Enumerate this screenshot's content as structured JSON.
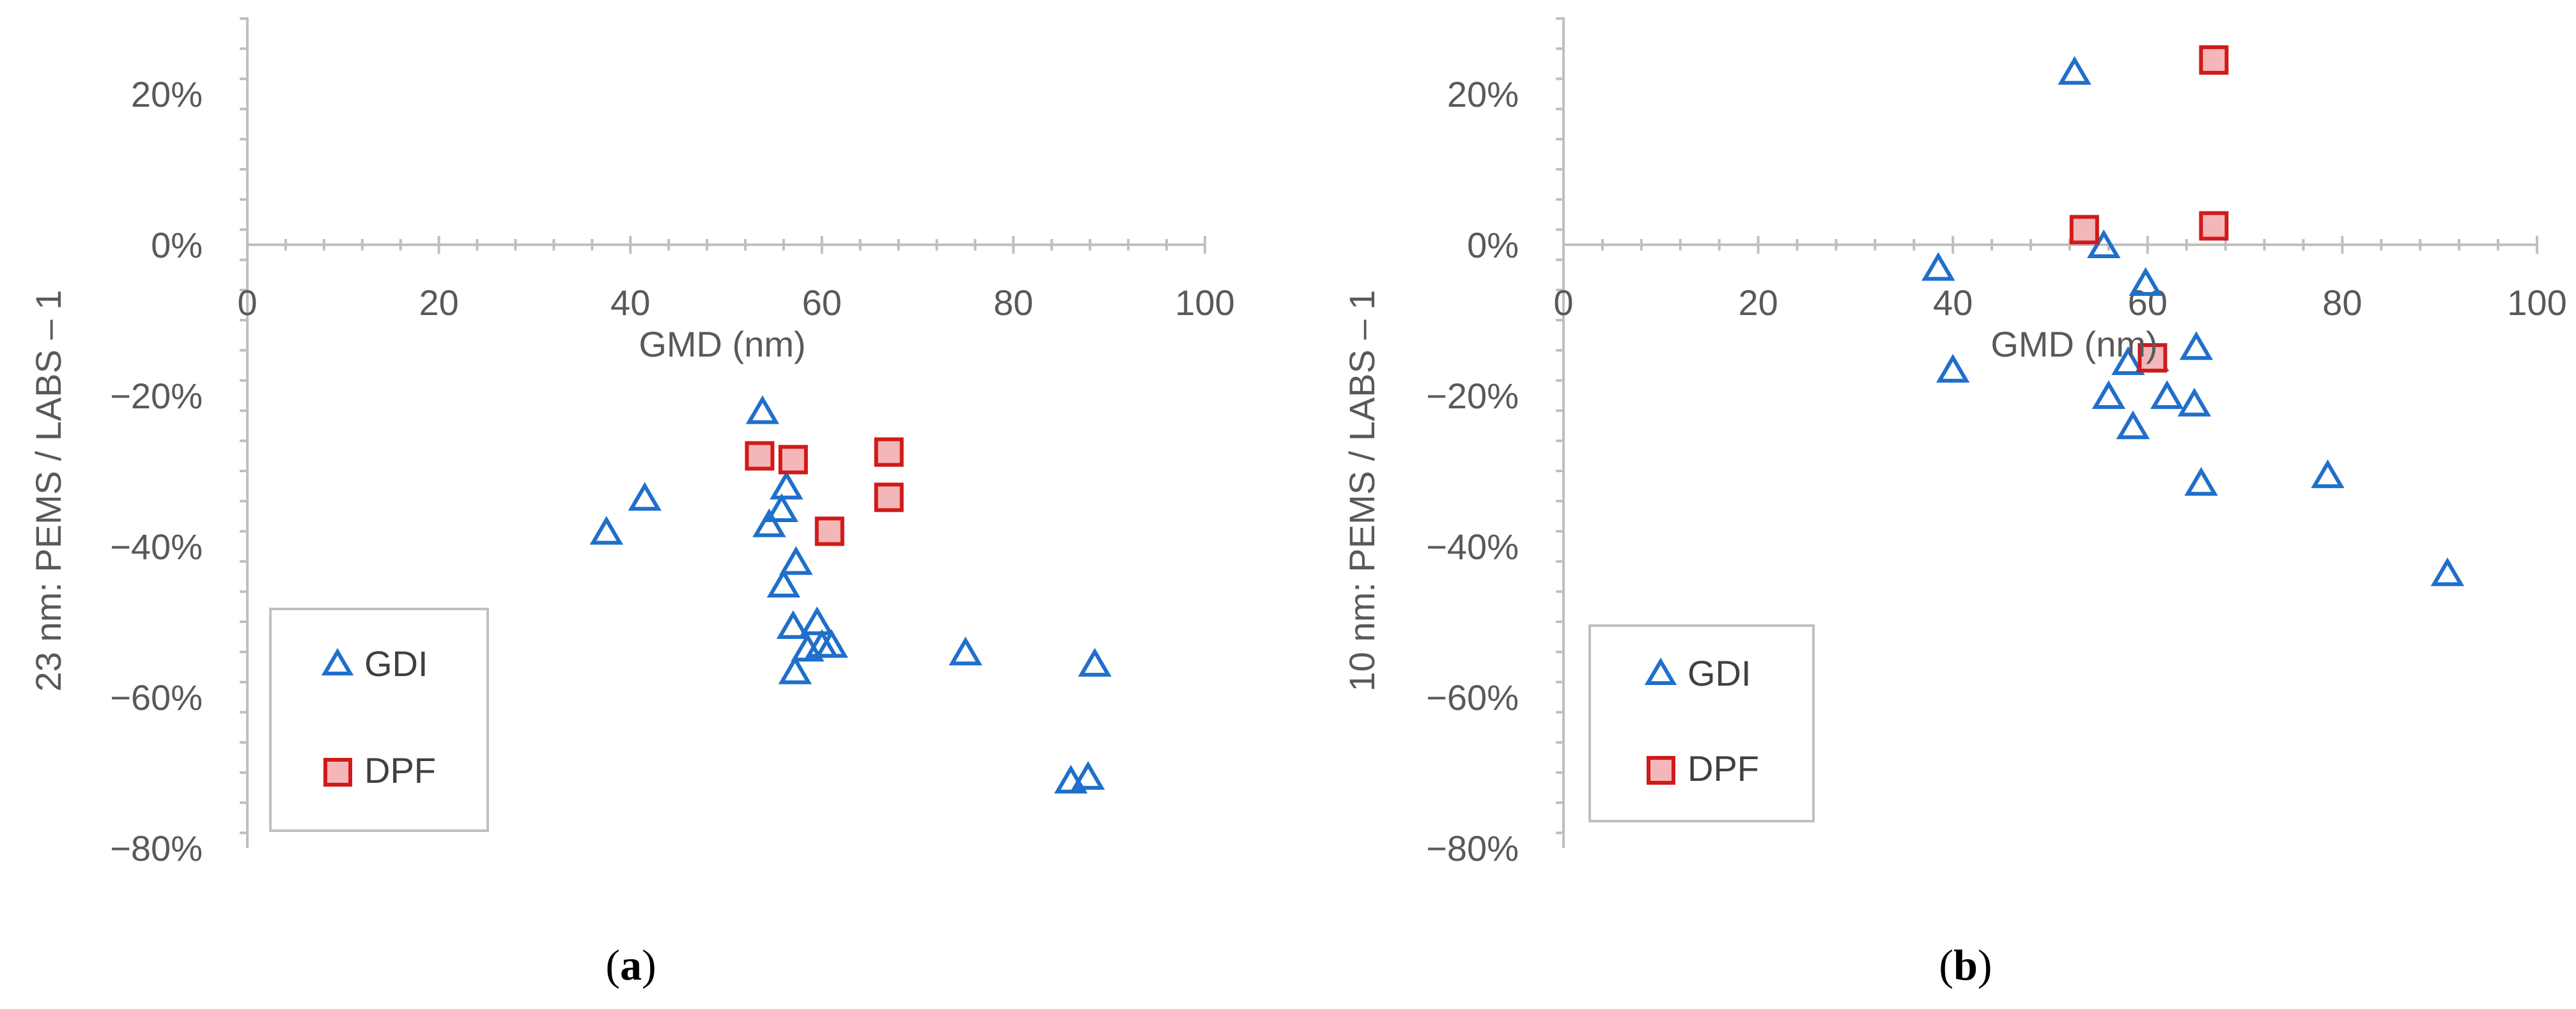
{
  "colors": {
    "gdi": "#1f6fcb",
    "dpf_stroke": "#d11a1a",
    "dpf_fill": "#f4b7b9",
    "axis": "#bfbfbf",
    "text": "#595959"
  },
  "chart_data": [
    {
      "type": "scatter",
      "panel_label": "a",
      "xlabel": "GMD (nm)",
      "ylabel": "23 nm:  PEMS / LABS – 1",
      "xlim": [
        0,
        100
      ],
      "ylim": [
        -80,
        30
      ],
      "x_ticks": [
        0,
        20,
        40,
        60,
        80,
        100
      ],
      "y_ticks": [
        20,
        0,
        -20,
        -40,
        -60,
        -80
      ],
      "y_tick_labels": [
        "20%",
        "0%",
        "−20%",
        "−40%",
        "−60%",
        "−80%"
      ],
      "legend": [
        {
          "label": "GDI",
          "marker": "triangle"
        },
        {
          "label": "DPF",
          "marker": "square"
        }
      ],
      "series": [
        {
          "name": "GDI",
          "points": [
            [
              37.5,
              -38
            ],
            [
              41.5,
              -33.5
            ],
            [
              53.8,
              -22
            ],
            [
              54.5,
              -37
            ],
            [
              55.8,
              -35
            ],
            [
              56.3,
              -32
            ],
            [
              56,
              -45
            ],
            [
              57.3,
              -42
            ],
            [
              57,
              -50.5
            ],
            [
              57.2,
              -56.5
            ],
            [
              58.5,
              -53.5
            ],
            [
              59.5,
              -50
            ],
            [
              60,
              -53
            ],
            [
              61,
              -53
            ],
            [
              75,
              -54
            ],
            [
              88.5,
              -55.5
            ],
            [
              86,
              -71
            ],
            [
              87.8,
              -70.5
            ]
          ]
        },
        {
          "name": "DPF",
          "points": [
            [
              53.5,
              -28
            ],
            [
              57,
              -28.5
            ],
            [
              60.8,
              -38
            ],
            [
              67,
              -27.5
            ],
            [
              67,
              -33.5
            ]
          ]
        }
      ]
    },
    {
      "type": "scatter",
      "panel_label": "b",
      "xlabel": "GMD (nm)",
      "ylabel": "10 nm:  PEMS / LABS – 1",
      "xlim": [
        0,
        100
      ],
      "ylim": [
        -80,
        30
      ],
      "x_ticks": [
        0,
        20,
        40,
        60,
        80,
        100
      ],
      "y_ticks": [
        20,
        0,
        -20,
        -40,
        -60,
        -80
      ],
      "y_tick_labels": [
        "20%",
        "0%",
        "−20%",
        "−40%",
        "−60%",
        "−80%"
      ],
      "legend": [
        {
          "label": "GDI",
          "marker": "triangle"
        },
        {
          "label": "DPF",
          "marker": "square"
        }
      ],
      "series": [
        {
          "name": "GDI",
          "points": [
            [
              52.5,
              23
            ],
            [
              38.5,
              -3
            ],
            [
              55.5,
              0
            ],
            [
              40,
              -16.5
            ],
            [
              59.8,
              -5
            ],
            [
              58,
              -15.5
            ],
            [
              60.5,
              -15
            ],
            [
              56,
              -20
            ],
            [
              62,
              -20
            ],
            [
              58.5,
              -24
            ],
            [
              65,
              -13.5
            ],
            [
              64.8,
              -21
            ],
            [
              65.5,
              -31.5
            ],
            [
              78.5,
              -30.5
            ],
            [
              90.8,
              -43.5
            ]
          ]
        },
        {
          "name": "DPF",
          "points": [
            [
              66.8,
              24.5
            ],
            [
              53.5,
              2
            ],
            [
              66.8,
              2.5
            ],
            [
              60.5,
              -15
            ]
          ]
        }
      ]
    }
  ]
}
